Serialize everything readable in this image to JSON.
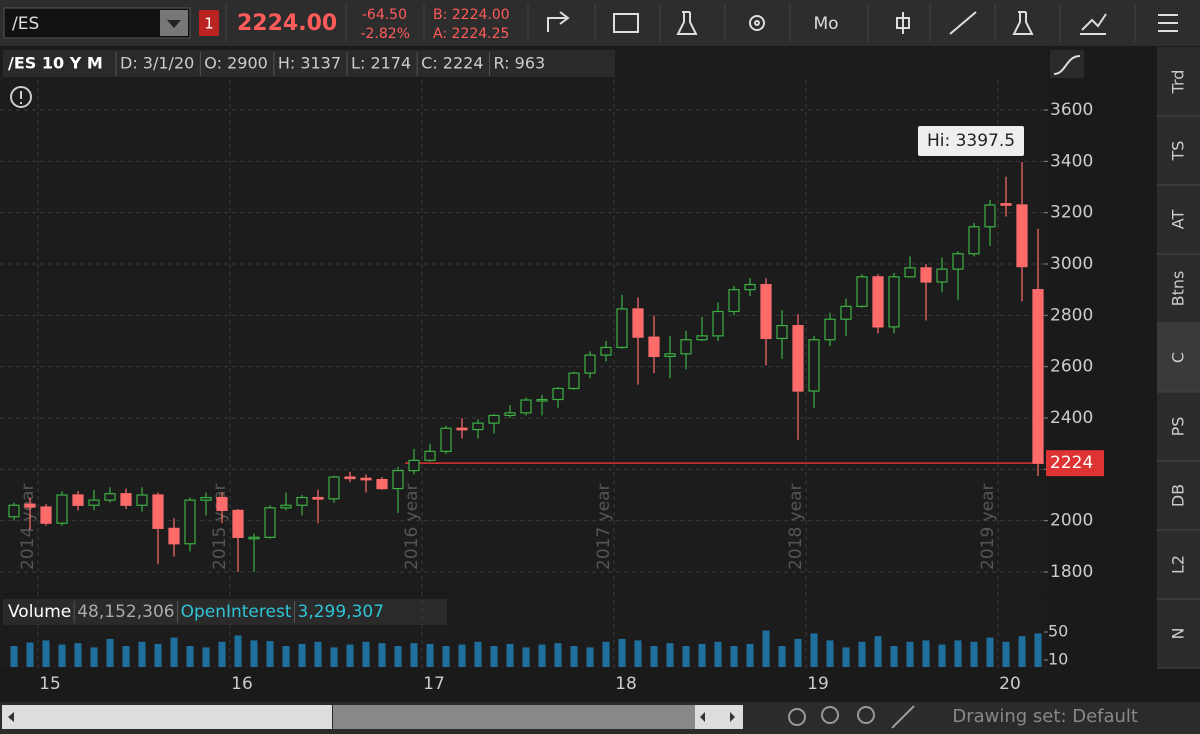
{
  "toolbar": {
    "symbol": "/ES",
    "badge": "1",
    "last": "2224.00",
    "change": "-64.50",
    "change_pct": "-2.82%",
    "bid": "B: 2224.00",
    "ask": "A: 2224.25",
    "period": "Mo"
  },
  "info": {
    "title": "/ES 10 Y M",
    "items": [
      "D: 3/1/20",
      "O: 2900",
      "H: 3137",
      "L: 2174",
      "C: 2224",
      "R: 963"
    ]
  },
  "side_tabs": [
    "Trd",
    "TS",
    "AT",
    "Btns",
    "C",
    "PS",
    "DB",
    "L2",
    "N"
  ],
  "footer": {
    "drawing_set": "Drawing set: Default"
  },
  "chart_data": {
    "type": "candlestick",
    "categories": [
      null,
      null,
      "15",
      null,
      null,
      null,
      null,
      null,
      null,
      null,
      null,
      null,
      null,
      null,
      "16",
      null,
      null,
      null,
      null,
      null,
      null,
      null,
      null,
      null,
      null,
      null,
      "17",
      null,
      null,
      null,
      null,
      null,
      null,
      null,
      null,
      null,
      null,
      null,
      "18",
      null,
      null,
      null,
      null,
      null,
      null,
      null,
      null,
      null,
      null,
      null,
      "19",
      null,
      null,
      null,
      null,
      null,
      null,
      null,
      null,
      null,
      null,
      null,
      "20",
      null,
      null
    ],
    "year_labels": [
      null,
      null,
      "2014 year",
      null,
      null,
      null,
      null,
      null,
      null,
      null,
      null,
      null,
      null,
      null,
      "2015 year",
      null,
      null,
      null,
      null,
      null,
      null,
      null,
      null,
      null,
      null,
      null,
      "2016 year",
      null,
      null,
      null,
      null,
      null,
      null,
      null,
      null,
      null,
      null,
      null,
      "2017 year",
      null,
      null,
      null,
      null,
      null,
      null,
      null,
      null,
      null,
      null,
      null,
      "2018 year",
      null,
      null,
      null,
      null,
      null,
      null,
      null,
      null,
      null,
      null,
      null,
      "2019 year",
      null,
      null
    ],
    "open": [
      2015,
      2064,
      2053,
      1990,
      2100,
      2060,
      2080,
      2105,
      2060,
      2100,
      1970,
      1910,
      2080,
      2090,
      2040,
      1935,
      1935,
      2050,
      2060,
      2090,
      2085,
      2170,
      2165,
      2160,
      2125,
      2195,
      2235,
      2270,
      2360,
      2355,
      2380,
      2410,
      2420,
      2470,
      2472,
      2515,
      2575,
      2645,
      2675,
      2825,
      2715,
      2640,
      2650,
      2705,
      2720,
      2815,
      2900,
      2920,
      2710,
      2760,
      2505,
      2705,
      2785,
      2835,
      2950,
      2755,
      2950,
      2985,
      2930,
      2980,
      3040,
      3145,
      3235,
      3230,
      2900
    ],
    "high": [
      2070,
      2090,
      2065,
      2115,
      2115,
      2120,
      2130,
      2125,
      2130,
      2110,
      2010,
      2090,
      2110,
      2110,
      2045,
      1950,
      2060,
      2110,
      2100,
      2120,
      2175,
      2190,
      2180,
      2170,
      2210,
      2280,
      2300,
      2370,
      2400,
      2395,
      2415,
      2450,
      2480,
      2490,
      2520,
      2580,
      2660,
      2700,
      2880,
      2870,
      2800,
      2720,
      2740,
      2795,
      2850,
      2915,
      2945,
      2945,
      2820,
      2805,
      2720,
      2810,
      2865,
      2960,
      2960,
      2965,
      3030,
      3000,
      3025,
      3050,
      3160,
      3250,
      3340,
      3397.5,
      3137
    ],
    "low": [
      2000,
      1965,
      1980,
      1980,
      2040,
      2040,
      2070,
      2045,
      2035,
      1830,
      1860,
      1880,
      2020,
      1990,
      1800,
      1800,
      1930,
      2040,
      2020,
      1990,
      2070,
      2150,
      2110,
      2120,
      2030,
      2180,
      2230,
      2260,
      2320,
      2320,
      2340,
      2400,
      2410,
      2410,
      2440,
      2510,
      2555,
      2620,
      2670,
      2530,
      2575,
      2555,
      2590,
      2700,
      2700,
      2800,
      2875,
      2605,
      2630,
      2315,
      2440,
      2680,
      2720,
      2830,
      2730,
      2730,
      2950,
      2780,
      2890,
      2860,
      3030,
      3070,
      3185,
      2855,
      2174
    ],
    "close": [
      2060,
      2053,
      1990,
      2100,
      2060,
      2080,
      2105,
      2060,
      2100,
      1970,
      1910,
      2080,
      2090,
      2040,
      1935,
      1935,
      2050,
      2060,
      2090,
      2085,
      2170,
      2165,
      2160,
      2125,
      2195,
      2235,
      2270,
      2360,
      2355,
      2380,
      2410,
      2420,
      2470,
      2472,
      2515,
      2575,
      2645,
      2675,
      2825,
      2715,
      2640,
      2650,
      2705,
      2720,
      2815,
      2900,
      2920,
      2710,
      2760,
      2505,
      2705,
      2785,
      2835,
      2950,
      2755,
      2950,
      2985,
      2930,
      2980,
      3040,
      3145,
      3230,
      3230,
      2990,
      2224
    ],
    "up_color": "#3cb043",
    "down_color": "#ff6b6b",
    "ylim": [
      1722,
      3717
    ],
    "yticks": [
      1800,
      2000,
      2200,
      2400,
      2600,
      2800,
      3000,
      3200,
      3400,
      3600
    ],
    "grid": true,
    "hi_label": "Hi: 3397.5",
    "last_label": "2224",
    "volume": {
      "legend": "Volume",
      "value": "48,152,306",
      "oi_legend": "OpenInterest",
      "oi_value": "3,299,307",
      "values": [
        30,
        35,
        38,
        32,
        34,
        28,
        40,
        30,
        36,
        33,
        42,
        30,
        28,
        36,
        45,
        38,
        37,
        30,
        33,
        36,
        28,
        32,
        36,
        34,
        30,
        34,
        33,
        30,
        32,
        36,
        30,
        33,
        28,
        32,
        34,
        30,
        28,
        36,
        40,
        38,
        30,
        34,
        30,
        33,
        36,
        30,
        33,
        52,
        30,
        40,
        48,
        38,
        28,
        36,
        44,
        30,
        36,
        38,
        32,
        38,
        36,
        42,
        36,
        44,
        48
      ],
      "color": "#1f6f9f",
      "ylim": [
        0,
        61.4
      ],
      "yticks": [
        10,
        50
      ]
    }
  }
}
